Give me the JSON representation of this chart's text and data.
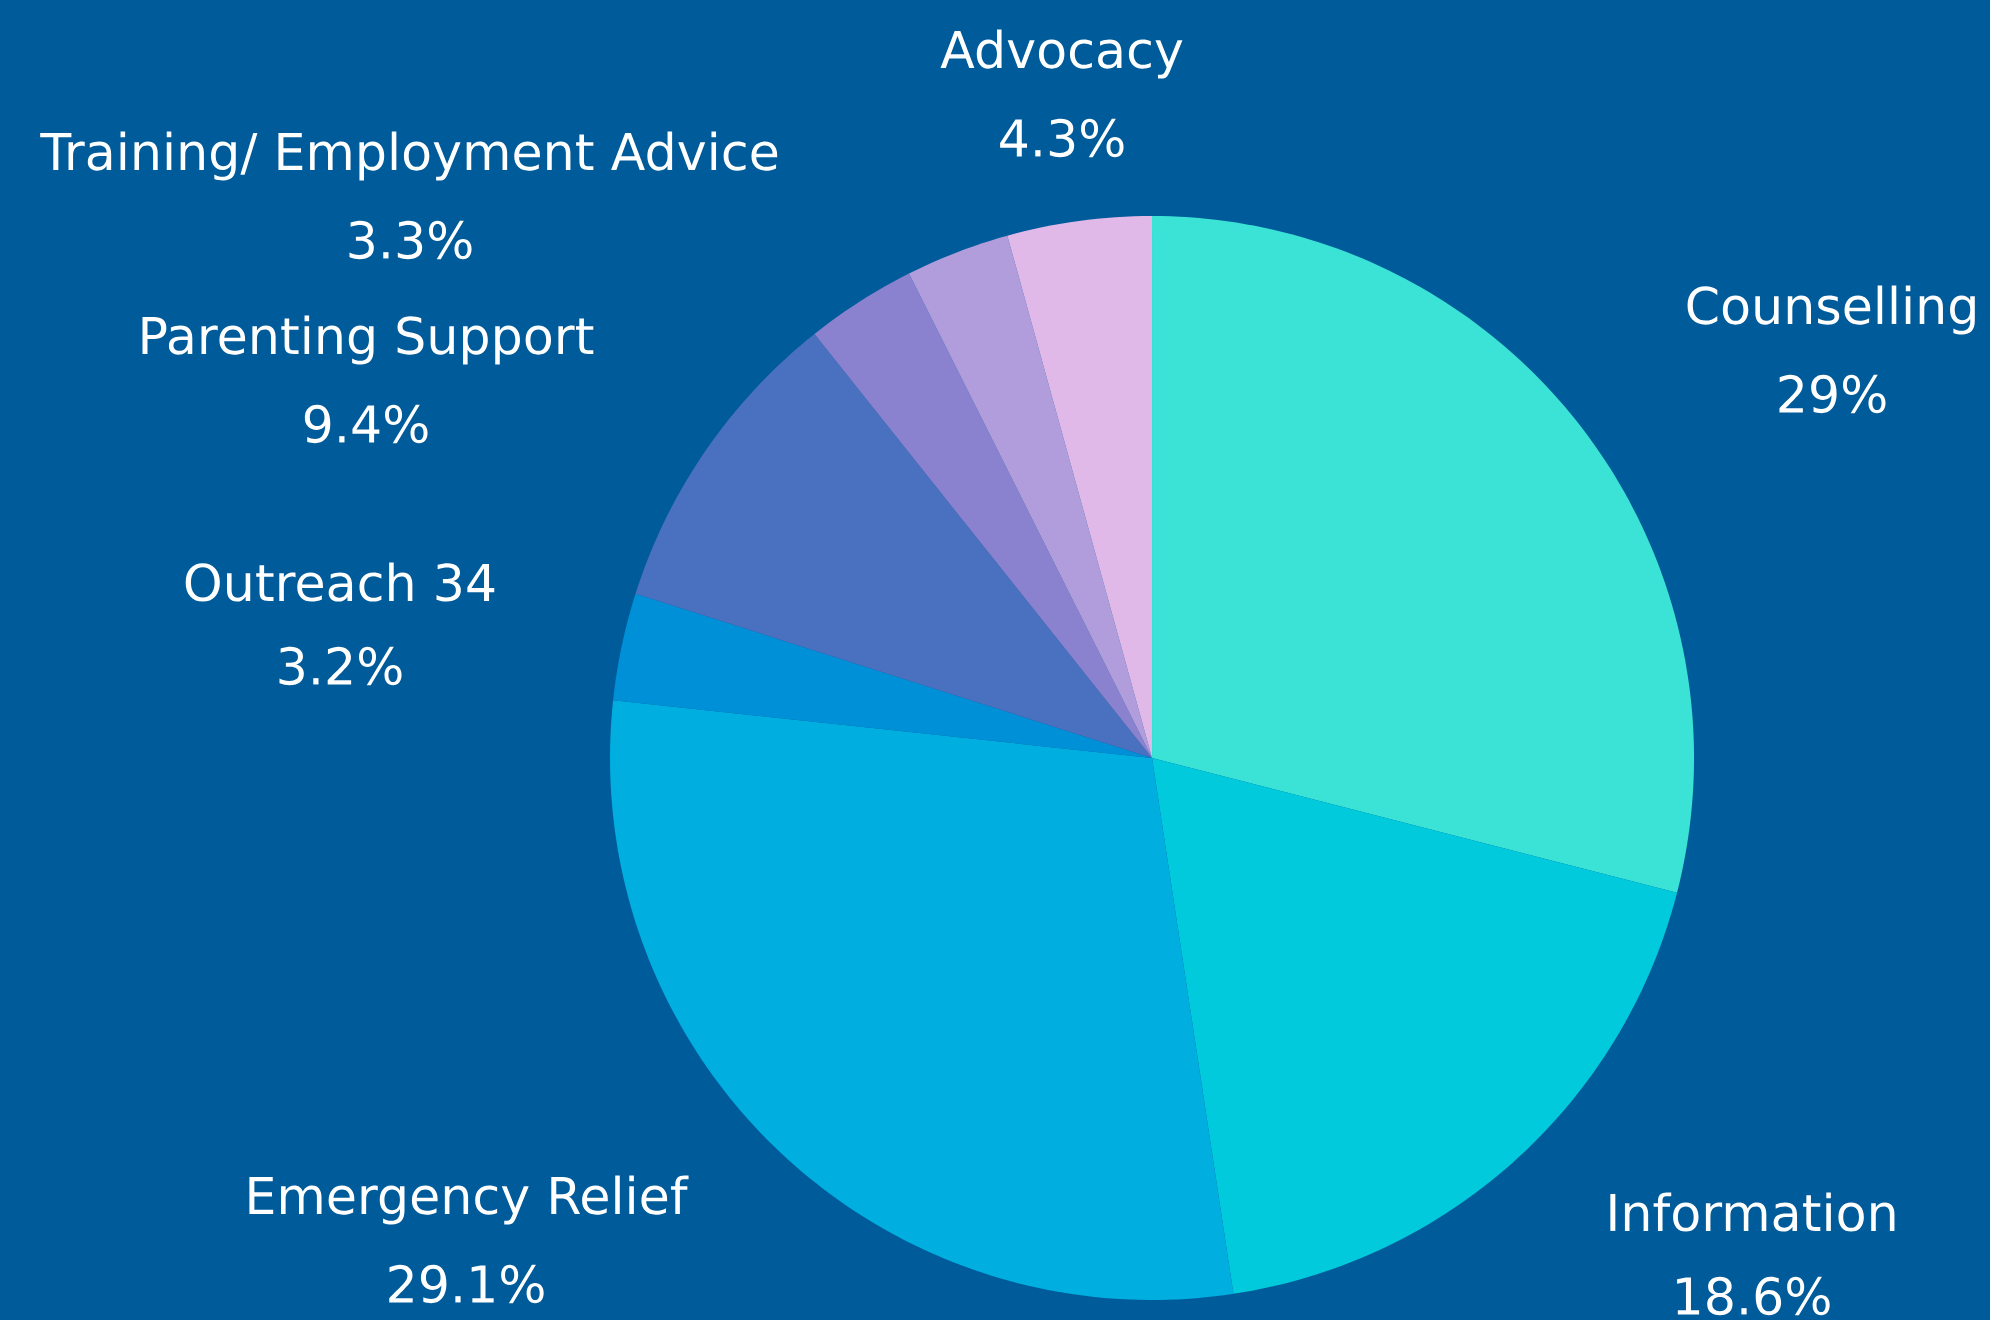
{
  "chart_data": {
    "type": "pie",
    "categories": [
      "Counselling",
      "Information",
      "Emergency Relief",
      "Outreach 34",
      "Parenting Support",
      "Training/ Employment Advice",
      null,
      "Advocacy"
    ],
    "values": [
      29,
      18.6,
      29.1,
      3.2,
      9.4,
      3.3,
      3.1,
      4.3
    ],
    "value_labels": [
      "29%",
      "18.6%",
      "29.1%",
      "3.2%",
      "9.4%",
      "3.3%",
      null,
      "4.3%"
    ],
    "colors": [
      "#3ae3d6",
      "#00cadc",
      "#00aedf",
      "#0090d8",
      "#4a70c0",
      "#8a82cf",
      "#b29ddc",
      "#e0b9e8"
    ]
  }
}
